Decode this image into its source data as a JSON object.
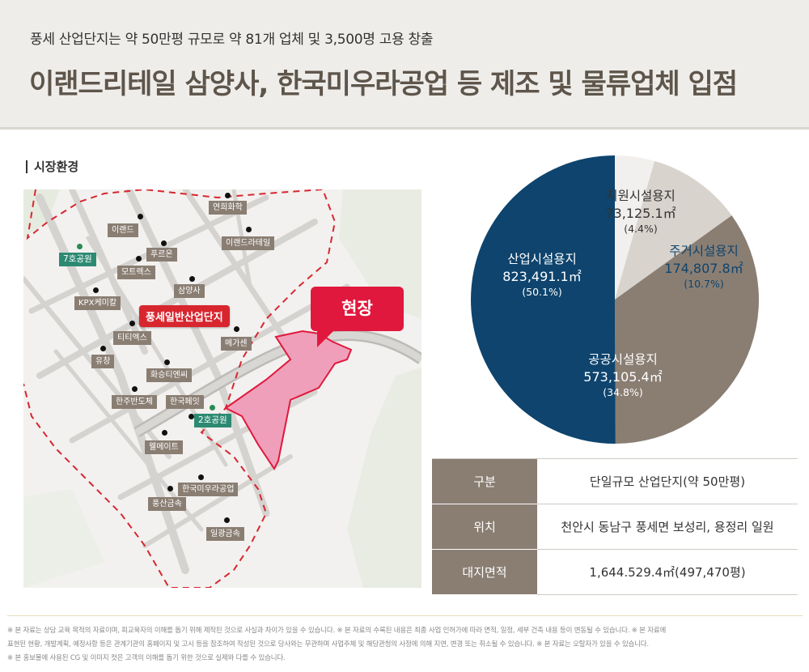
{
  "header": {
    "subtitle": "풍세 산업단지는 약 50만평 규모로 약 81개 업체 및 3,500명 고용 창출",
    "title": "이랜드리테일 삼양사, 한국미우라공업 등 제조 및 물류업체 입점"
  },
  "section": {
    "label": "시장환경"
  },
  "map": {
    "highlight_label": "풍세일반산업단지",
    "site_label": "현장",
    "places": [
      {
        "name": "연희화학",
        "type": "company"
      },
      {
        "name": "이랜드",
        "type": "company"
      },
      {
        "name": "이랜드라테일",
        "type": "company"
      },
      {
        "name": "7호공원",
        "type": "park"
      },
      {
        "name": "푸르온",
        "type": "company"
      },
      {
        "name": "모트렉스",
        "type": "company"
      },
      {
        "name": "삼양사",
        "type": "company"
      },
      {
        "name": "KPX케미칼",
        "type": "company"
      },
      {
        "name": "티티엑스",
        "type": "company"
      },
      {
        "name": "메가센",
        "type": "company"
      },
      {
        "name": "유창",
        "type": "company"
      },
      {
        "name": "화승티엔씨",
        "type": "company"
      },
      {
        "name": "한주반도체",
        "type": "company"
      },
      {
        "name": "한국페잇",
        "type": "company"
      },
      {
        "name": "2호공원",
        "type": "park"
      },
      {
        "name": "웰메이트",
        "type": "company"
      },
      {
        "name": "한국미우라공업",
        "type": "company"
      },
      {
        "name": "풍산금속",
        "type": "company"
      },
      {
        "name": "일광금속",
        "type": "company"
      }
    ]
  },
  "chart_data": {
    "type": "pie",
    "slices": [
      {
        "name": "지원시설용지",
        "value": 73125.1,
        "value_label": "73,125.1㎡",
        "percent_label": "(4.4%)",
        "color": "#f2f0ee"
      },
      {
        "name": "주거시설용지",
        "value": 174807.8,
        "value_label": "174,807.8㎡",
        "percent_label": "(10.7%)",
        "color": "#d8d3cd"
      },
      {
        "name": "공공시설용지",
        "value": 573105.4,
        "value_label": "573,105.4㎡",
        "percent_label": "(34.8%)",
        "color": "#8a7e73"
      },
      {
        "name": "산업시설용지",
        "value": 823491.1,
        "value_label": "823,491.1㎡",
        "percent_label": "(50.1%)",
        "color": "#0e446d"
      }
    ]
  },
  "info_table": {
    "rows": [
      {
        "key": "구분",
        "value": "단일규모 산업단지(약 50만평)"
      },
      {
        "key": "위치",
        "value": "천안시 동남구 풍세면 보성리, 용정리 일원"
      },
      {
        "key": "대지면적",
        "value": "1,644.529.4㎡(497,470평)"
      }
    ]
  },
  "footer": {
    "line1": "※ 본 자료는 상담 교육 목적의 자료이며, 피교육자의 이해를 돕기 위해 제작된 것으로 사실과 차이가 있을 수 있습니다. ※ 본 자료의 수록된 내용은 최종 사업 인허가에 따라 면적, 일정, 세부 건축 내용 등이 변동될 수 있습니다. ※ 본 자료에",
    "line2": "표현된 현황, 개발계획, 예정사항 등은 관계기관의 홈페이지 및 고시 등을 참조하여 작성된 것으로 당사와는 무관하며 사업주체 및 해당관청의 사정에 의해 지연, 변경 또는 취소될 수 있습니다. ※ 본 자료는 오탈자가 있을 수 있습니다.",
    "line3": "※ 본 홍보물에 사용된 CG 및 이미지 컷은 고객의 이해를 돕기 위한 것으로 실제와 다를 수 있습니다."
  }
}
